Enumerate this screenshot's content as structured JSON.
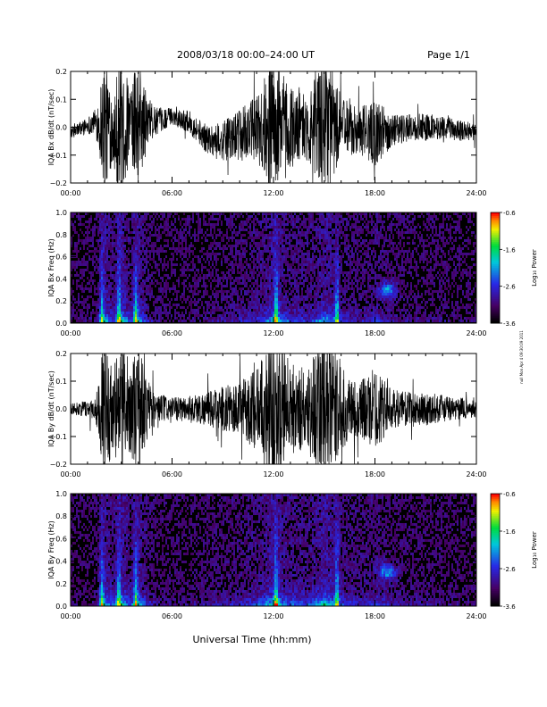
{
  "header": {
    "title": "2008/03/18  00:00–24:00 UT",
    "page": "Page 1/1"
  },
  "side_note": "null  Mon Apr 4 09:30:09 2011",
  "xlabel": "Universal Time (hh:mm)",
  "x_ticks": [
    "00:00",
    "06:00",
    "12:00",
    "18:00",
    "24:00"
  ],
  "colors": {
    "trace": "#000000",
    "background": "#ffffff",
    "spectrogram_bg": "#000000"
  },
  "colorbar": {
    "label": "Log₁₀ Power",
    "tick_labels": [
      "-0.6",
      "-1.6",
      "-2.6",
      "-3.6"
    ],
    "range": [
      -3.6,
      -0.6
    ],
    "colormap": "rainbow (black-purple-blue-cyan-green-yellow-orange-red)"
  },
  "chart_data": [
    {
      "type": "line",
      "ylabel": "IQA Bx dB/dt (nT/sec)",
      "xlim_hours": [
        0,
        24
      ],
      "ylim": [
        -0.2,
        0.2
      ],
      "y_ticks": [
        "0.2",
        "0.1",
        "0.0",
        "−0.1",
        "−0.2"
      ],
      "activity_envelope": {
        "hours": [
          0,
          1,
          1.5,
          2,
          2.5,
          3,
          3.5,
          4,
          4.5,
          5,
          6,
          7,
          8,
          9,
          10,
          11,
          12,
          12.5,
          13,
          14,
          15,
          16,
          17,
          18,
          19,
          20,
          21,
          22,
          23,
          24
        ],
        "amplitude": [
          0.02,
          0.03,
          0.05,
          0.25,
          0.12,
          0.3,
          0.12,
          0.25,
          0.1,
          0.05,
          0.03,
          0.04,
          0.05,
          0.07,
          0.09,
          0.12,
          0.25,
          0.2,
          0.15,
          0.12,
          0.25,
          0.12,
          0.08,
          0.12,
          0.06,
          0.05,
          0.05,
          0.04,
          0.04,
          0.03
        ]
      },
      "baseline": {
        "hours": [
          0,
          1.5,
          2.5,
          4,
          5,
          6,
          7,
          8,
          9,
          10,
          11,
          12,
          14,
          16,
          18,
          20,
          22,
          24
        ],
        "values": [
          -0.02,
          0.02,
          0.0,
          0.01,
          0.02,
          0.04,
          0.02,
          -0.04,
          -0.05,
          -0.03,
          0.0,
          0.0,
          0.0,
          0.0,
          -0.02,
          0.0,
          0.0,
          -0.02
        ]
      }
    },
    {
      "type": "heatmap",
      "ylabel": "IQA Bx Freq (Hz)",
      "xlim_hours": [
        0,
        24
      ],
      "ylim": [
        0,
        1.0
      ],
      "y_ticks": [
        "1.0",
        "0.8",
        "0.6",
        "0.4",
        "0.2",
        "0.0"
      ],
      "zlim": [
        -3.6,
        -0.6
      ],
      "bursts_hours": [
        1.8,
        2.8,
        3.8,
        12.1,
        15.7
      ],
      "feature": {
        "hour": 18.7,
        "freq_hz": 0.3,
        "label": ""
      }
    },
    {
      "type": "line",
      "ylabel": "IQA By dB/dt (nT/sec)",
      "xlim_hours": [
        0,
        24
      ],
      "ylim": [
        -0.2,
        0.2
      ],
      "y_ticks": [
        "0.2",
        "0.1",
        "0.0",
        "−0.1",
        "−0.2"
      ],
      "activity_envelope": {
        "hours": [
          0,
          1,
          1.5,
          2,
          2.5,
          3,
          3.5,
          4,
          4.5,
          5,
          6,
          7,
          8,
          9,
          10,
          11,
          12,
          12.5,
          13,
          14,
          15,
          16,
          17,
          18,
          19,
          20,
          21,
          22,
          23,
          24
        ],
        "amplitude": [
          0.02,
          0.03,
          0.05,
          0.25,
          0.15,
          0.3,
          0.15,
          0.25,
          0.12,
          0.06,
          0.04,
          0.05,
          0.06,
          0.08,
          0.1,
          0.15,
          0.3,
          0.22,
          0.18,
          0.15,
          0.3,
          0.15,
          0.1,
          0.15,
          0.07,
          0.06,
          0.06,
          0.05,
          0.04,
          0.03
        ]
      },
      "baseline": {
        "hours": [
          0,
          2,
          4,
          6,
          8,
          10,
          12,
          14,
          16,
          18,
          20,
          22,
          24
        ],
        "values": [
          0.0,
          0.0,
          0.0,
          0.0,
          0.0,
          0.0,
          0.0,
          0.0,
          0.0,
          0.0,
          0.0,
          0.0,
          0.0
        ]
      }
    },
    {
      "type": "heatmap",
      "ylabel": "IQA By Freq (Hz)",
      "xlim_hours": [
        0,
        24
      ],
      "ylim": [
        0,
        1.0
      ],
      "y_ticks": [
        "1.0",
        "0.8",
        "0.6",
        "0.4",
        "0.2",
        "0.0"
      ],
      "zlim": [
        -3.6,
        -0.6
      ],
      "bursts_hours": [
        1.8,
        2.8,
        3.8,
        12.1,
        15.7
      ],
      "feature": {
        "hour": 18.7,
        "freq_hz": 0.32,
        "label": ""
      }
    }
  ]
}
